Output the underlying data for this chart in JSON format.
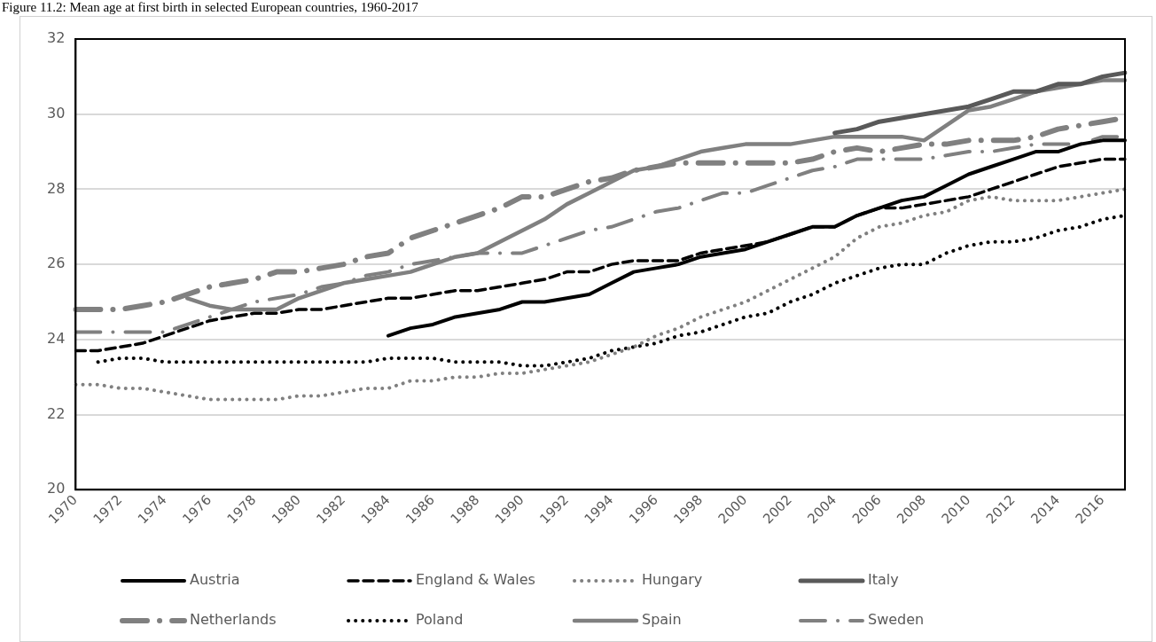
{
  "chart_data": {
    "type": "line",
    "title": "Figure 11.2: Mean age at first birth in selected European countries, 1960-2017",
    "categories": [
      "1970",
      null,
      "1972",
      null,
      "1974",
      null,
      "1976",
      null,
      "1978",
      null,
      "1980",
      null,
      "1982",
      null,
      "1984",
      null,
      "1986",
      null,
      "1988",
      null,
      "1990",
      null,
      "1992",
      null,
      "1994",
      null,
      "1996",
      null,
      "1998",
      null,
      "2000",
      null,
      "2002",
      null,
      "2004",
      null,
      "2006",
      null,
      "2008",
      null,
      "2010",
      null,
      "2012",
      null,
      "2014",
      null,
      "2016",
      null
    ],
    "series": [
      {
        "name": "Austria",
        "color": "#000000",
        "line_style": "solid",
        "values": [
          null,
          null,
          null,
          null,
          null,
          null,
          null,
          null,
          null,
          null,
          null,
          null,
          null,
          null,
          24.1,
          24.3,
          24.4,
          24.6,
          24.7,
          24.8,
          25.0,
          25.0,
          25.1,
          25.2,
          25.5,
          25.8,
          25.9,
          26.0,
          26.2,
          26.3,
          26.4,
          26.6,
          26.8,
          27.0,
          27.0,
          27.3,
          27.5,
          27.7,
          27.8,
          28.1,
          28.4,
          28.6,
          28.8,
          29.0,
          29.0,
          29.2,
          29.3,
          29.3
        ]
      },
      {
        "name": "England & Wales",
        "color": "#000000",
        "line_style": "dashed",
        "values": [
          23.7,
          23.7,
          23.8,
          23.9,
          24.1,
          24.3,
          24.5,
          24.6,
          24.7,
          24.7,
          24.8,
          24.8,
          24.9,
          25.0,
          25.1,
          25.1,
          25.2,
          25.3,
          25.3,
          25.4,
          25.5,
          25.6,
          25.8,
          25.8,
          26.0,
          26.1,
          26.1,
          26.1,
          26.3,
          26.4,
          26.5,
          26.6,
          26.8,
          27.0,
          27.0,
          27.3,
          27.5,
          27.5,
          27.6,
          27.7,
          27.8,
          28.0,
          28.2,
          28.4,
          28.6,
          28.7,
          28.8,
          28.8
        ]
      },
      {
        "name": "Hungary",
        "color": "#808080",
        "line_style": "dotted",
        "values": [
          22.8,
          22.8,
          22.7,
          22.7,
          22.6,
          22.5,
          22.4,
          22.4,
          22.4,
          22.4,
          22.5,
          22.5,
          22.6,
          22.7,
          22.7,
          22.9,
          22.9,
          23.0,
          23.0,
          23.1,
          23.1,
          23.2,
          23.3,
          23.4,
          23.6,
          23.8,
          24.1,
          24.3,
          24.6,
          24.8,
          25.0,
          25.3,
          25.6,
          25.9,
          26.2,
          26.7,
          27.0,
          27.1,
          27.3,
          27.4,
          27.7,
          27.8,
          27.7,
          27.7,
          27.7,
          27.8,
          27.9,
          28.0
        ]
      },
      {
        "name": "Italy",
        "color": "#595959",
        "line_style": "solid",
        "values": [
          null,
          null,
          null,
          null,
          null,
          null,
          null,
          null,
          null,
          null,
          null,
          null,
          null,
          null,
          null,
          null,
          null,
          null,
          null,
          null,
          null,
          null,
          null,
          null,
          null,
          null,
          null,
          null,
          null,
          null,
          null,
          null,
          null,
          null,
          29.5,
          29.6,
          29.8,
          29.9,
          30.0,
          30.1,
          30.2,
          30.4,
          30.6,
          30.6,
          30.8,
          30.8,
          31.0,
          31.1
        ]
      },
      {
        "name": "Netherlands",
        "color": "#808080",
        "line_style": "dashdot",
        "values": [
          24.8,
          24.8,
          24.8,
          24.9,
          25.0,
          25.2,
          25.4,
          25.5,
          25.6,
          25.8,
          25.8,
          25.9,
          26.0,
          26.2,
          26.3,
          26.7,
          26.9,
          27.1,
          27.3,
          27.5,
          27.8,
          27.8,
          28.0,
          28.2,
          28.3,
          28.5,
          28.6,
          28.7,
          28.7,
          28.7,
          28.7,
          28.7,
          28.7,
          28.8,
          29.0,
          29.1,
          29.0,
          29.1,
          29.2,
          29.2,
          29.3,
          29.3,
          29.3,
          29.4,
          29.6,
          29.7,
          29.8,
          29.9
        ]
      },
      {
        "name": "Poland",
        "color": "#000000",
        "line_style": "dotted",
        "values": [
          null,
          23.4,
          23.5,
          23.5,
          23.4,
          23.4,
          23.4,
          23.4,
          23.4,
          23.4,
          23.4,
          23.4,
          23.4,
          23.4,
          23.5,
          23.5,
          23.5,
          23.4,
          23.4,
          23.4,
          23.3,
          23.3,
          23.4,
          23.5,
          23.7,
          23.8,
          23.9,
          24.1,
          24.2,
          24.4,
          24.6,
          24.7,
          25.0,
          25.2,
          25.5,
          25.7,
          25.9,
          26.0,
          26.0,
          26.3,
          26.5,
          26.6,
          26.6,
          26.7,
          26.9,
          27.0,
          27.2,
          27.3
        ]
      },
      {
        "name": "Spain",
        "color": "#808080",
        "line_style": "solid",
        "values": [
          null,
          null,
          null,
          null,
          null,
          25.1,
          24.9,
          24.8,
          24.8,
          24.8,
          25.1,
          25.3,
          25.5,
          25.6,
          25.7,
          25.8,
          26.0,
          26.2,
          26.3,
          26.6,
          26.9,
          27.2,
          27.6,
          27.9,
          28.2,
          28.5,
          28.6,
          28.8,
          29.0,
          29.1,
          29.2,
          29.2,
          29.2,
          29.3,
          29.4,
          29.4,
          29.4,
          29.4,
          29.3,
          29.7,
          30.1,
          30.2,
          30.4,
          30.6,
          30.7,
          30.8,
          30.9,
          30.9
        ]
      },
      {
        "name": "Sweden",
        "color": "#808080",
        "line_style": "dashdot",
        "values": [
          24.2,
          24.2,
          24.2,
          24.2,
          24.2,
          24.4,
          24.6,
          24.8,
          25.0,
          25.1,
          25.2,
          25.4,
          25.5,
          25.7,
          25.8,
          26.0,
          26.1,
          26.2,
          26.3,
          26.3,
          26.3,
          26.5,
          26.7,
          26.9,
          27.0,
          27.2,
          27.4,
          27.5,
          27.7,
          27.9,
          27.9,
          28.1,
          28.3,
          28.5,
          28.6,
          28.8,
          28.8,
          28.8,
          28.8,
          28.9,
          29.0,
          29.0,
          29.1,
          29.2,
          29.2,
          29.2,
          29.4,
          29.4
        ]
      }
    ],
    "ylim": [
      20,
      32
    ],
    "yticks": [
      20,
      22,
      24,
      26,
      28,
      30,
      32
    ],
    "grid": "y",
    "legend": "bottom",
    "marker": "none"
  }
}
